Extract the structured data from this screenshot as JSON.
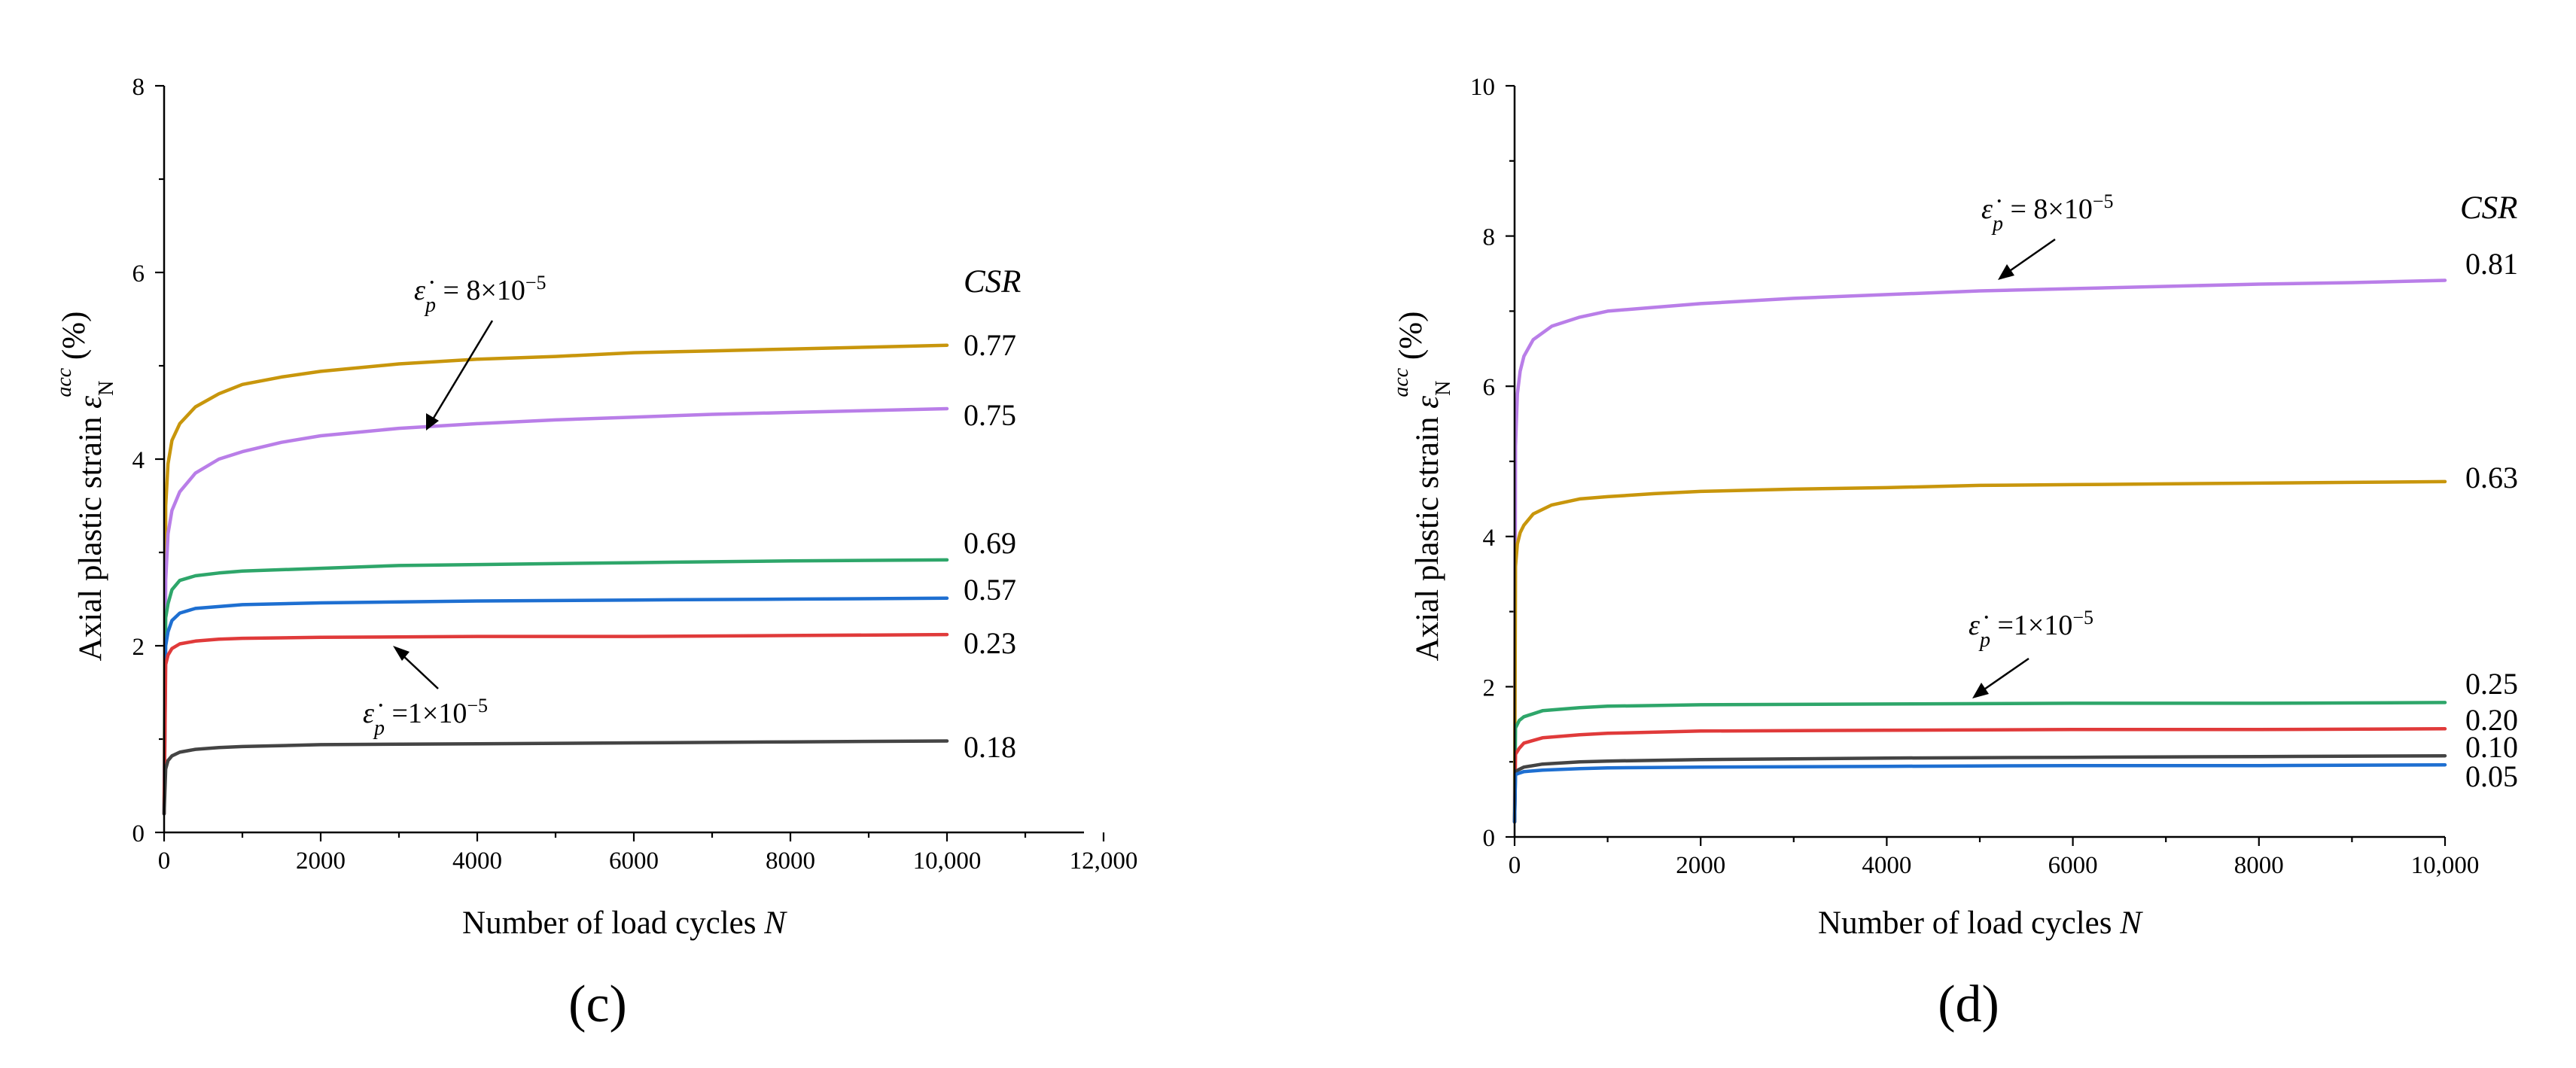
{
  "chart_data": [
    {
      "panel": "(c)",
      "type": "line",
      "xlabel": "Number of load cycles",
      "xlabel_var": "N",
      "ylabel": "Axial plastic strain",
      "ylabel_symbol": "ε",
      "ylabel_sup": "acc",
      "ylabel_sub": "N",
      "ylabel_unit": "(%)",
      "xlim": [
        0,
        12000
      ],
      "ylim": [
        0,
        8
      ],
      "x_ticks": [
        0,
        2000,
        4000,
        6000,
        8000,
        10000,
        12000
      ],
      "x_tick_labels": [
        "0",
        "2000",
        "4000",
        "6000",
        "8000",
        "10,000",
        "12,000"
      ],
      "y_ticks": [
        0,
        2,
        4,
        6,
        8
      ],
      "y_tick_labels": [
        "0",
        "2",
        "4",
        "6",
        "8"
      ],
      "legend_title": "CSR",
      "annotations": [
        {
          "symbol": "ε̇",
          "sub": "p",
          "text": " = 8×10",
          "exp": "−5"
        },
        {
          "symbol": "ε̇",
          "sub": "p",
          "text": " =1×10",
          "exp": "−5"
        }
      ],
      "series": [
        {
          "name": "0.77",
          "color": "#c8960c",
          "values": [
            [
              0,
              0.2
            ],
            [
              20,
              3.5
            ],
            [
              50,
              3.95
            ],
            [
              100,
              4.2
            ],
            [
              200,
              4.38
            ],
            [
              400,
              4.56
            ],
            [
              700,
              4.7
            ],
            [
              1000,
              4.8
            ],
            [
              1500,
              4.88
            ],
            [
              2000,
              4.94
            ],
            [
              3000,
              5.02
            ],
            [
              4000,
              5.07
            ],
            [
              5000,
              5.1
            ],
            [
              6000,
              5.14
            ],
            [
              7000,
              5.16
            ],
            [
              8000,
              5.18
            ],
            [
              9000,
              5.2
            ],
            [
              10000,
              5.22
            ]
          ]
        },
        {
          "name": "0.75",
          "color": "#b97ee8",
          "values": [
            [
              0,
              0.2
            ],
            [
              20,
              2.7
            ],
            [
              50,
              3.2
            ],
            [
              100,
              3.45
            ],
            [
              200,
              3.65
            ],
            [
              400,
              3.85
            ],
            [
              700,
              4.0
            ],
            [
              1000,
              4.08
            ],
            [
              1500,
              4.18
            ],
            [
              2000,
              4.25
            ],
            [
              3000,
              4.33
            ],
            [
              4000,
              4.38
            ],
            [
              5000,
              4.42
            ],
            [
              6000,
              4.45
            ],
            [
              7000,
              4.48
            ],
            [
              8000,
              4.5
            ],
            [
              9000,
              4.52
            ],
            [
              10000,
              4.54
            ]
          ]
        },
        {
          "name": "0.69",
          "color": "#2ea66a",
          "values": [
            [
              0,
              0.2
            ],
            [
              20,
              2.3
            ],
            [
              50,
              2.45
            ],
            [
              100,
              2.6
            ],
            [
              200,
              2.7
            ],
            [
              400,
              2.75
            ],
            [
              700,
              2.78
            ],
            [
              1000,
              2.8
            ],
            [
              2000,
              2.83
            ],
            [
              3000,
              2.86
            ],
            [
              4000,
              2.87
            ],
            [
              6000,
              2.89
            ],
            [
              8000,
              2.91
            ],
            [
              10000,
              2.92
            ]
          ]
        },
        {
          "name": "0.57",
          "color": "#1e6fd1",
          "values": [
            [
              0,
              0.2
            ],
            [
              20,
              2.0
            ],
            [
              50,
              2.15
            ],
            [
              100,
              2.27
            ],
            [
              200,
              2.35
            ],
            [
              400,
              2.4
            ],
            [
              700,
              2.42
            ],
            [
              1000,
              2.44
            ],
            [
              2000,
              2.46
            ],
            [
              3000,
              2.47
            ],
            [
              4000,
              2.48
            ],
            [
              6000,
              2.49
            ],
            [
              8000,
              2.5
            ],
            [
              10000,
              2.51
            ]
          ]
        },
        {
          "name": "0.23",
          "color": "#e03a3a",
          "values": [
            [
              0,
              0.2
            ],
            [
              20,
              1.8
            ],
            [
              50,
              1.9
            ],
            [
              100,
              1.97
            ],
            [
              200,
              2.02
            ],
            [
              400,
              2.05
            ],
            [
              700,
              2.07
            ],
            [
              1000,
              2.08
            ],
            [
              2000,
              2.09
            ],
            [
              4000,
              2.1
            ],
            [
              6000,
              2.1
            ],
            [
              8000,
              2.11
            ],
            [
              10000,
              2.12
            ]
          ]
        },
        {
          "name": "0.18",
          "color": "#444444",
          "values": [
            [
              0,
              0.2
            ],
            [
              20,
              0.68
            ],
            [
              50,
              0.77
            ],
            [
              100,
              0.82
            ],
            [
              200,
              0.86
            ],
            [
              400,
              0.89
            ],
            [
              700,
              0.91
            ],
            [
              1000,
              0.92
            ],
            [
              2000,
              0.94
            ],
            [
              4000,
              0.95
            ],
            [
              6000,
              0.96
            ],
            [
              8000,
              0.97
            ],
            [
              10000,
              0.98
            ]
          ]
        }
      ]
    },
    {
      "panel": "(d)",
      "type": "line",
      "xlabel": "Number of load cycles",
      "xlabel_var": "N",
      "ylabel": "Axial plastic strain",
      "ylabel_symbol": "ε",
      "ylabel_sup": "acc",
      "ylabel_sub": "N",
      "ylabel_unit": "(%)",
      "xlim": [
        0,
        10000
      ],
      "ylim": [
        0,
        10
      ],
      "x_ticks": [
        0,
        2000,
        4000,
        6000,
        8000,
        10000
      ],
      "x_tick_labels": [
        "0",
        "2000",
        "4000",
        "6000",
        "8000",
        "10,000"
      ],
      "y_ticks": [
        0,
        2,
        4,
        6,
        8,
        10
      ],
      "y_tick_labels": [
        "0",
        "2",
        "4",
        "6",
        "8",
        "10"
      ],
      "legend_title": "CSR",
      "annotations": [
        {
          "symbol": "ε̇",
          "sub": "p",
          "text": " = 8×10",
          "exp": "−5"
        },
        {
          "symbol": "ε̇",
          "sub": "p",
          "text": " =1×10",
          "exp": "−5"
        }
      ],
      "series": [
        {
          "name": "0.81",
          "color": "#b97ee8",
          "values": [
            [
              0,
              0.2
            ],
            [
              10,
              5.2
            ],
            [
              30,
              5.9
            ],
            [
              60,
              6.2
            ],
            [
              100,
              6.4
            ],
            [
              200,
              6.62
            ],
            [
              400,
              6.8
            ],
            [
              700,
              6.92
            ],
            [
              1000,
              7.0
            ],
            [
              1500,
              7.05
            ],
            [
              2000,
              7.1
            ],
            [
              3000,
              7.17
            ],
            [
              4000,
              7.22
            ],
            [
              5000,
              7.27
            ],
            [
              6000,
              7.3
            ],
            [
              7000,
              7.33
            ],
            [
              8000,
              7.36
            ],
            [
              9000,
              7.38
            ],
            [
              10000,
              7.41
            ]
          ]
        },
        {
          "name": "0.63",
          "color": "#c8960c",
          "values": [
            [
              0,
              0.2
            ],
            [
              10,
              3.6
            ],
            [
              30,
              3.9
            ],
            [
              60,
              4.05
            ],
            [
              100,
              4.15
            ],
            [
              200,
              4.3
            ],
            [
              400,
              4.42
            ],
            [
              700,
              4.5
            ],
            [
              1000,
              4.53
            ],
            [
              1500,
              4.57
            ],
            [
              2000,
              4.6
            ],
            [
              3000,
              4.63
            ],
            [
              4000,
              4.65
            ],
            [
              5000,
              4.68
            ],
            [
              6000,
              4.69
            ],
            [
              7000,
              4.7
            ],
            [
              8000,
              4.71
            ],
            [
              9000,
              4.72
            ],
            [
              10000,
              4.73
            ]
          ]
        },
        {
          "name": "0.25",
          "color": "#2ea66a",
          "values": [
            [
              0,
              0.2
            ],
            [
              10,
              1.45
            ],
            [
              50,
              1.55
            ],
            [
              100,
              1.6
            ],
            [
              300,
              1.68
            ],
            [
              700,
              1.72
            ],
            [
              1000,
              1.74
            ],
            [
              2000,
              1.76
            ],
            [
              4000,
              1.77
            ],
            [
              6000,
              1.78
            ],
            [
              8000,
              1.78
            ],
            [
              10000,
              1.79
            ]
          ]
        },
        {
          "name": "0.20",
          "color": "#e03a3a",
          "values": [
            [
              0,
              0.2
            ],
            [
              10,
              1.1
            ],
            [
              50,
              1.18
            ],
            [
              100,
              1.25
            ],
            [
              300,
              1.32
            ],
            [
              700,
              1.36
            ],
            [
              1000,
              1.38
            ],
            [
              2000,
              1.41
            ],
            [
              4000,
              1.42
            ],
            [
              6000,
              1.43
            ],
            [
              8000,
              1.43
            ],
            [
              10000,
              1.44
            ]
          ]
        },
        {
          "name": "0.10",
          "color": "#444444",
          "values": [
            [
              0,
              0.2
            ],
            [
              10,
              0.87
            ],
            [
              50,
              0.9
            ],
            [
              100,
              0.93
            ],
            [
              300,
              0.97
            ],
            [
              700,
              1.0
            ],
            [
              1000,
              1.01
            ],
            [
              2000,
              1.03
            ],
            [
              4000,
              1.05
            ],
            [
              6000,
              1.06
            ],
            [
              8000,
              1.07
            ],
            [
              10000,
              1.08
            ]
          ]
        },
        {
          "name": "0.05",
          "color": "#1e6fd1",
          "values": [
            [
              0,
              0.2
            ],
            [
              10,
              0.83
            ],
            [
              50,
              0.85
            ],
            [
              100,
              0.87
            ],
            [
              300,
              0.89
            ],
            [
              700,
              0.91
            ],
            [
              1000,
              0.92
            ],
            [
              2000,
              0.93
            ],
            [
              4000,
              0.94
            ],
            [
              6000,
              0.95
            ],
            [
              8000,
              0.95
            ],
            [
              10000,
              0.96
            ]
          ]
        }
      ]
    }
  ]
}
